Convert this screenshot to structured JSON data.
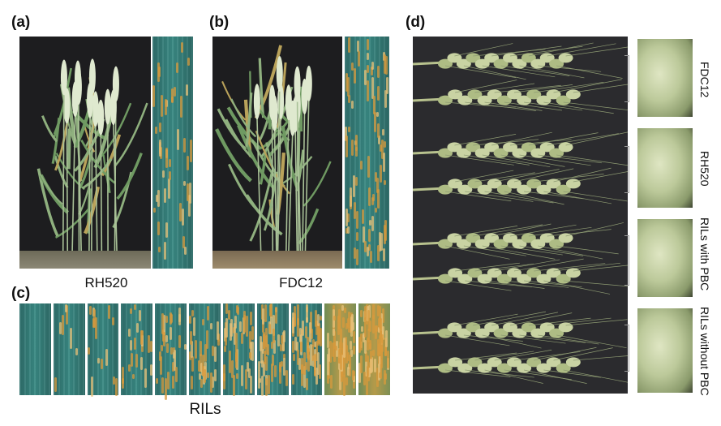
{
  "panels": {
    "a": {
      "letter": "(a)",
      "caption": "RH520",
      "plant_icon": "wheat-plant-photo",
      "leaf_icon": "rust-leaf-photo"
    },
    "b": {
      "letter": "(b)",
      "caption": "FDC12",
      "plant_icon": "wheat-plant-photo",
      "leaf_icon": "rust-leaf-photo"
    },
    "c": {
      "letter": "(c)",
      "caption": "RILs",
      "leaf_count": 11,
      "leaf_icon": "rust-leaf-photo"
    },
    "d": {
      "letter": "(d)",
      "spike_icon": "wheat-spike-photo",
      "closeup_icon": "spikelet-closeup-photo",
      "groups": [
        {
          "label": "FDC12"
        },
        {
          "label": "RH520"
        },
        {
          "label": "RILs with PBC"
        },
        {
          "label": "RILs without PBC"
        }
      ]
    }
  },
  "colors": {
    "leaf_green": "#3a8a84",
    "rust_orange": "#d89a3c",
    "spike_green": "#c9d3a3",
    "dark_backdrop": "#2b2b2e"
  }
}
